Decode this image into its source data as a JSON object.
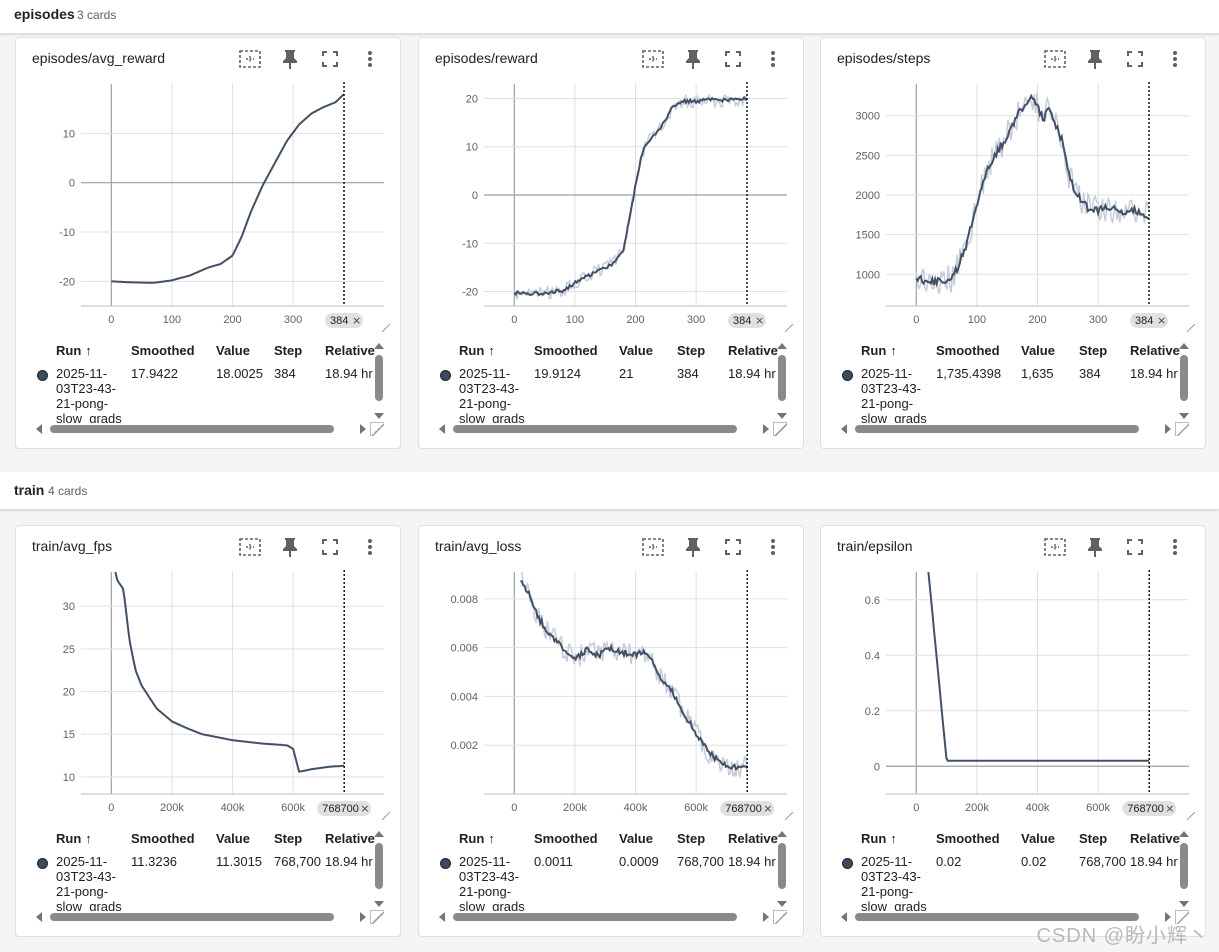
{
  "groups": [
    {
      "title": "episodes",
      "count": "3 cards"
    },
    {
      "title": "train",
      "count": "4 cards"
    }
  ],
  "table_headers": {
    "run": "Run",
    "smoothed": "Smoothed",
    "value": "Value",
    "step": "Step",
    "relative": "Relative"
  },
  "colors": {
    "series": "#425066",
    "raw_series": "#c5ccd8",
    "grid": "#e0e0e0",
    "axis": "#9e9e9e"
  },
  "icons": [
    "fit-domain-icon",
    "pin-icon",
    "fullscreen-icon",
    "more-vert-icon",
    "arrow-up-icon",
    "close-icon"
  ],
  "cards": [
    {
      "title": "episodes/avg_reward",
      "step_chip": "384",
      "row": {
        "run": "2025-11-03T23-43-21-pong-slow_grads",
        "smoothed": "17.9422",
        "value": "18.0025",
        "step": "384",
        "relative": "18.94 hr"
      },
      "chart_data": {
        "type": "line",
        "xlabel": "",
        "ylabel": "",
        "xlim": [
          -50,
          450
        ],
        "ylim": [
          -25,
          20
        ],
        "xticks": [
          {
            "v": 0,
            "label": "0"
          },
          {
            "v": 100,
            "label": "100"
          },
          {
            "v": 200,
            "label": "200"
          },
          {
            "v": 300,
            "label": "300"
          }
        ],
        "yticks": [
          {
            "v": -20,
            "label": "-20"
          },
          {
            "v": -10,
            "label": "-10"
          },
          {
            "v": 0,
            "label": "0"
          },
          {
            "v": 10,
            "label": "10"
          }
        ],
        "zero_line": true,
        "step_marker": 384,
        "noise": 0,
        "series": [
          {
            "x": [
              0,
              30,
              70,
              100,
              130,
              160,
              180,
              200,
              215,
              230,
              250,
              270,
              290,
              310,
              330,
              350,
              370,
              384
            ],
            "y": [
              -20,
              -20.2,
              -20.3,
              -19.8,
              -18.8,
              -17.2,
              -16.5,
              -14.8,
              -11,
              -6,
              -0.5,
              4,
              8.5,
              11.8,
              14,
              15.3,
              16.3,
              17.94
            ]
          }
        ]
      }
    },
    {
      "title": "episodes/reward",
      "step_chip": "384",
      "row": {
        "run": "2025-11-03T23-43-21-pong-slow_grads",
        "smoothed": "19.9124",
        "value": "21",
        "step": "384",
        "relative": "18.94 hr"
      },
      "chart_data": {
        "type": "line",
        "xlabel": "",
        "ylabel": "",
        "xlim": [
          -50,
          450
        ],
        "ylim": [
          -23,
          23
        ],
        "xticks": [
          {
            "v": 0,
            "label": "0"
          },
          {
            "v": 100,
            "label": "100"
          },
          {
            "v": 200,
            "label": "200"
          },
          {
            "v": 300,
            "label": "300"
          }
        ],
        "yticks": [
          {
            "v": -20,
            "label": "-20"
          },
          {
            "v": -10,
            "label": "-10"
          },
          {
            "v": 0,
            "label": "0"
          },
          {
            "v": 10,
            "label": "10"
          },
          {
            "v": 20,
            "label": "20"
          }
        ],
        "zero_line": true,
        "step_marker": 384,
        "noise": 1.2,
        "series": [
          {
            "x": [
              0,
              40,
              80,
              110,
              140,
              160,
              180,
              190,
              200,
              210,
              220,
              240,
              260,
              280,
              300,
              320,
              340,
              360,
              384
            ],
            "y": [
              -20.3,
              -20.4,
              -19.8,
              -17.5,
              -15.5,
              -14.5,
              -11.5,
              -5,
              2,
              8.5,
              11,
              13.5,
              18,
              19.5,
              19.4,
              19.8,
              19.5,
              19.8,
              19.9
            ]
          }
        ]
      }
    },
    {
      "title": "episodes/steps",
      "step_chip": "384",
      "row": {
        "run": "2025-11-03T23-43-21-pong-slow_grads",
        "smoothed": "1,735.4398",
        "value": "1,635",
        "step": "384",
        "relative": "18.94 hr"
      },
      "chart_data": {
        "type": "line",
        "xlabel": "",
        "ylabel": "",
        "xlim": [
          -50,
          450
        ],
        "ylim": [
          600,
          3400
        ],
        "xticks": [
          {
            "v": 0,
            "label": "0"
          },
          {
            "v": 100,
            "label": "100"
          },
          {
            "v": 200,
            "label": "200"
          },
          {
            "v": 300,
            "label": "300"
          }
        ],
        "yticks": [
          {
            "v": 1000,
            "label": "1000"
          },
          {
            "v": 1500,
            "label": "1500"
          },
          {
            "v": 2000,
            "label": "2000"
          },
          {
            "v": 2500,
            "label": "2500"
          },
          {
            "v": 3000,
            "label": "3000"
          }
        ],
        "zero_line": false,
        "step_marker": 384,
        "noise": 160,
        "series": [
          {
            "x": [
              0,
              30,
              60,
              80,
              100,
              115,
              130,
              150,
              170,
              190,
              200,
              210,
              220,
              240,
              250,
              260,
              280,
              300,
              320,
              340,
              360,
              384
            ],
            "y": [
              950,
              900,
              950,
              1300,
              1900,
              2300,
              2500,
              2750,
              3050,
              3250,
              3100,
              2950,
              3100,
              2700,
              2300,
              2100,
              1850,
              1800,
              1850,
              1780,
              1800,
              1735
            ]
          }
        ]
      }
    },
    {
      "title": "train/avg_fps",
      "step_chip": "768700",
      "row": {
        "run": "2025-11-03T23-43-21-pong-slow_grads",
        "smoothed": "11.3236",
        "value": "11.3015",
        "step": "768,700",
        "relative": "18.94 hr"
      },
      "chart_data": {
        "type": "line",
        "xlabel": "",
        "ylabel": "",
        "xlim": [
          -100000,
          900000
        ],
        "ylim": [
          8,
          34
        ],
        "xticks": [
          {
            "v": 0,
            "label": "0"
          },
          {
            "v": 200000,
            "label": "200k"
          },
          {
            "v": 400000,
            "label": "400k"
          },
          {
            "v": 600000,
            "label": "600k"
          }
        ],
        "yticks": [
          {
            "v": 10,
            "label": "10"
          },
          {
            "v": 15,
            "label": "15"
          },
          {
            "v": 20,
            "label": "20"
          },
          {
            "v": 25,
            "label": "25"
          },
          {
            "v": 30,
            "label": "30"
          }
        ],
        "zero_line": false,
        "step_marker": 768700,
        "noise": 0,
        "series": [
          {
            "x": [
              0,
              20000,
              40000,
              60000,
              80000,
              100000,
              150000,
              200000,
              250000,
              300000,
              400000,
              500000,
              580000,
              600000,
              620000,
              660000,
              720000,
              768700
            ],
            "y": [
              36,
              33,
              32,
              26,
              22.5,
              20.7,
              18,
              16.5,
              15.7,
              15,
              14.3,
              13.9,
              13.7,
              13.3,
              10.6,
              10.9,
              11.2,
              11.3
            ]
          }
        ]
      }
    },
    {
      "title": "train/avg_loss",
      "step_chip": "768700",
      "row": {
        "run": "2025-11-03T23-43-21-pong-slow_grads",
        "smoothed": "0.0011",
        "value": "0.0009",
        "step": "768,700",
        "relative": "18.94 hr"
      },
      "chart_data": {
        "type": "line",
        "xlabel": "",
        "ylabel": "",
        "xlim": [
          -100000,
          900000
        ],
        "ylim": [
          0,
          0.0091
        ],
        "xticks": [
          {
            "v": 0,
            "label": "0"
          },
          {
            "v": 200000,
            "label": "200k"
          },
          {
            "v": 400000,
            "label": "400k"
          },
          {
            "v": 600000,
            "label": "600k"
          }
        ],
        "yticks": [
          {
            "v": 0.002,
            "label": "0.002"
          },
          {
            "v": 0.004,
            "label": "0.004"
          },
          {
            "v": 0.006,
            "label": "0.006"
          },
          {
            "v": 0.008,
            "label": "0.008"
          }
        ],
        "zero_line": false,
        "step_marker": 768700,
        "noise": 0.0004,
        "series": [
          {
            "x": [
              20000,
              50000,
              80000,
              120000,
              160000,
              200000,
              240000,
              280000,
              320000,
              360000,
              400000,
              440000,
              480000,
              520000,
              560000,
              600000,
              640000,
              680000,
              720000,
              768700
            ],
            "y": [
              0.0088,
              0.0082,
              0.0072,
              0.0065,
              0.006,
              0.0055,
              0.0059,
              0.0057,
              0.006,
              0.0058,
              0.0057,
              0.0058,
              0.0048,
              0.0042,
              0.0033,
              0.0025,
              0.0017,
              0.0013,
              0.0011,
              0.0011
            ]
          }
        ]
      }
    },
    {
      "title": "train/epsilon",
      "step_chip": "768700",
      "row": {
        "run": "2025-11-03T23-43-21-pong-slow_grads",
        "smoothed": "0.02",
        "value": "0.02",
        "step": "768,700",
        "relative": "18.94 hr"
      },
      "chart_data": {
        "type": "line",
        "xlabel": "",
        "ylabel": "",
        "xlim": [
          -100000,
          900000
        ],
        "ylim": [
          -0.1,
          0.7
        ],
        "xticks": [
          {
            "v": 0,
            "label": "0"
          },
          {
            "v": 200000,
            "label": "200k"
          },
          {
            "v": 400000,
            "label": "400k"
          },
          {
            "v": 600000,
            "label": "600k"
          }
        ],
        "yticks": [
          {
            "v": 0,
            "label": "0"
          },
          {
            "v": 0.2,
            "label": "0.2"
          },
          {
            "v": 0.4,
            "label": "0.4"
          },
          {
            "v": 0.6,
            "label": "0.6"
          }
        ],
        "zero_line": true,
        "step_marker": 768700,
        "noise": 0,
        "series": [
          {
            "x": [
              40000,
              100000,
              150000,
              768700
            ],
            "y": [
              0.7,
              0.02,
              0.02,
              0.02
            ]
          }
        ]
      }
    }
  ],
  "watermark": "CSDN @盼小辉丶"
}
